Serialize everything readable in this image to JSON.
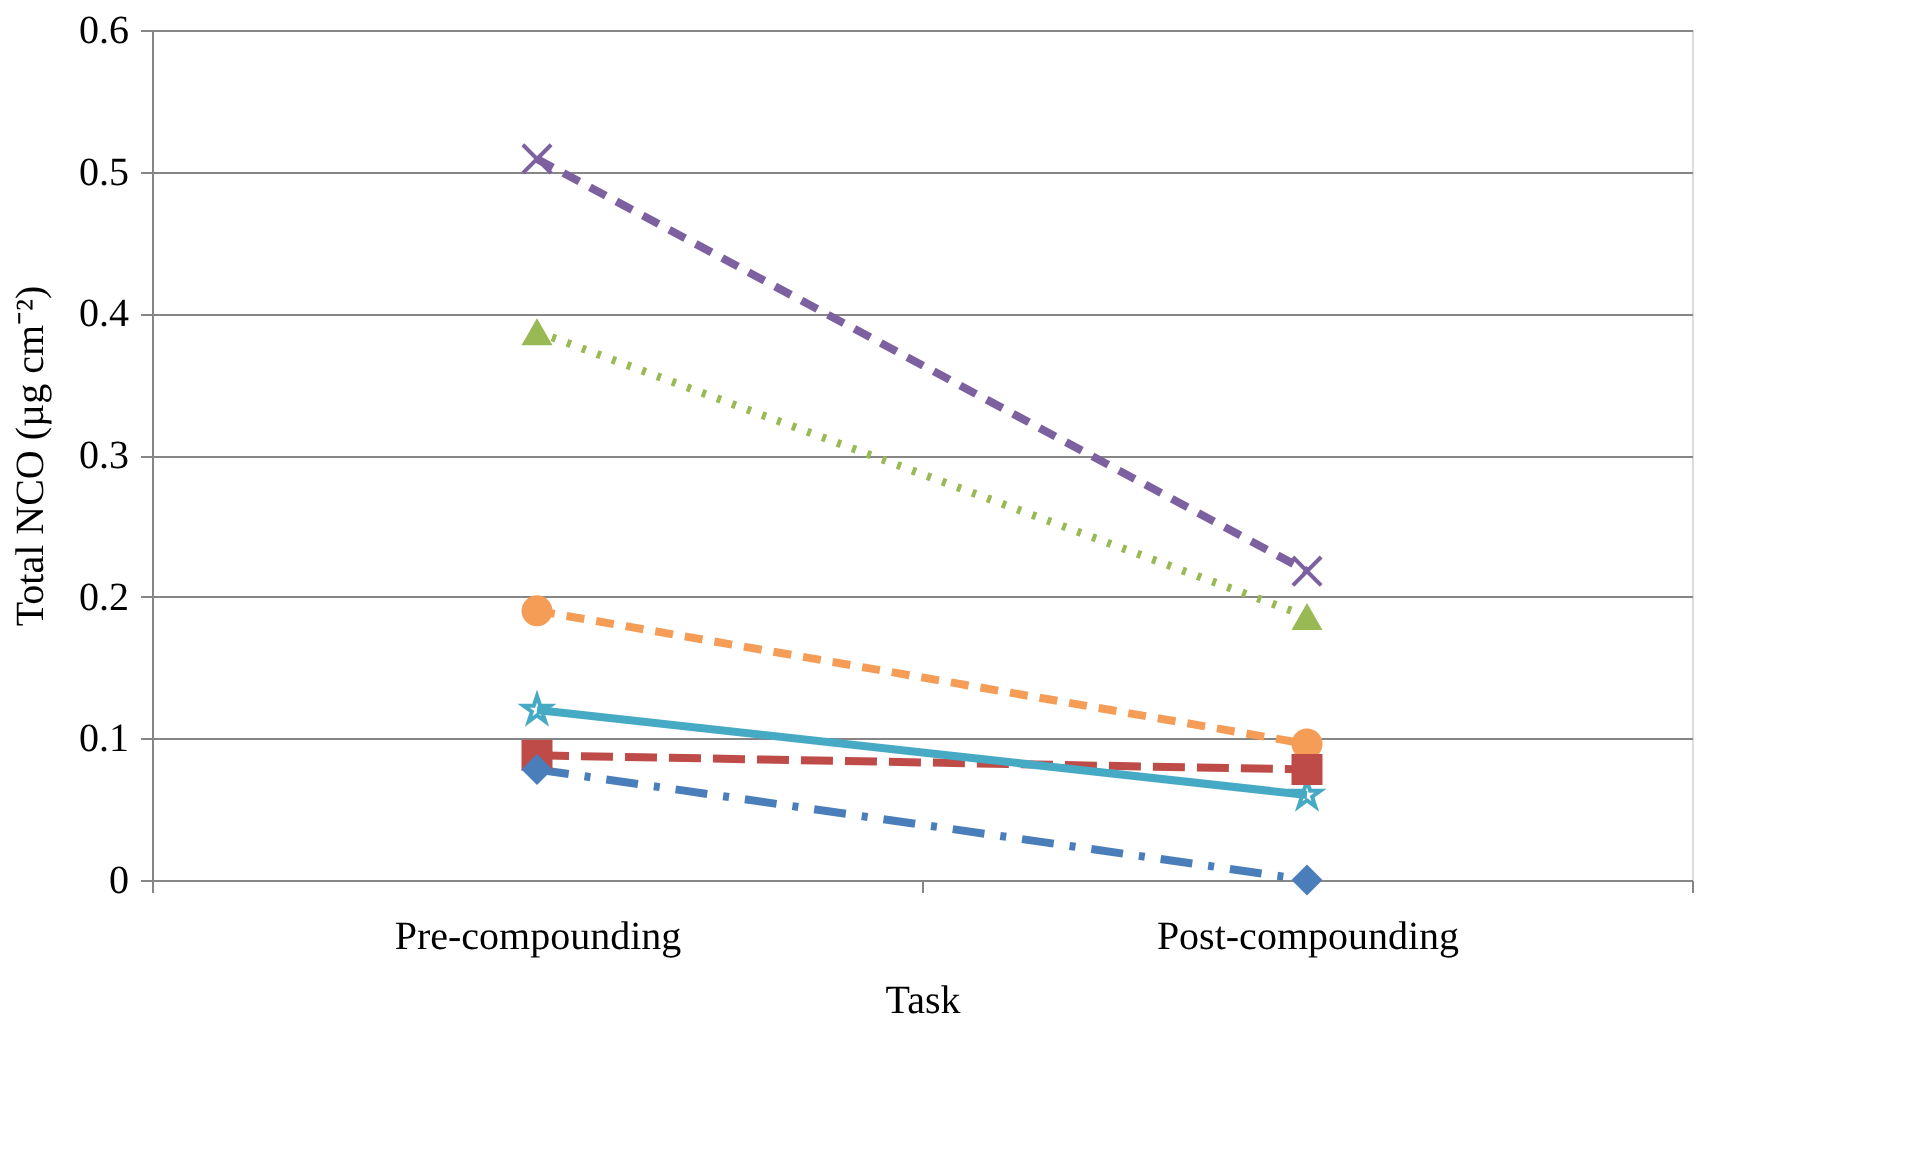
{
  "chart_data": {
    "type": "line",
    "xlabel": "Task",
    "ylabel": "Total NCO (µg cm⁻²)",
    "categories": [
      "Pre-compounding",
      "Post-compounding"
    ],
    "series": [
      {
        "color": "#4a7ebb",
        "values": [
          0.078,
          0.0
        ],
        "marker": "diamond",
        "line_style": "dashdot"
      },
      {
        "color": "#be4b48",
        "values": [
          0.088,
          0.078
        ],
        "marker": "square",
        "line_style": "longdash"
      },
      {
        "color": "#98b954",
        "values": [
          0.387,
          0.186
        ],
        "marker": "triangle",
        "line_style": "dotted"
      },
      {
        "color": "#7d60a0",
        "values": [
          0.509,
          0.218
        ],
        "marker": "cross",
        "line_style": "dashed"
      },
      {
        "color": "#46aac5",
        "values": [
          0.12,
          0.06
        ],
        "marker": "star",
        "line_style": "solid"
      },
      {
        "color": "#f59d56",
        "values": [
          0.19,
          0.096
        ],
        "marker": "circle",
        "line_style": "dashed"
      }
    ],
    "ylim": [
      0,
      0.6
    ],
    "yticks": [
      0,
      0.1,
      0.2,
      0.3,
      0.4,
      0.5,
      0.6
    ],
    "grid": "y"
  }
}
